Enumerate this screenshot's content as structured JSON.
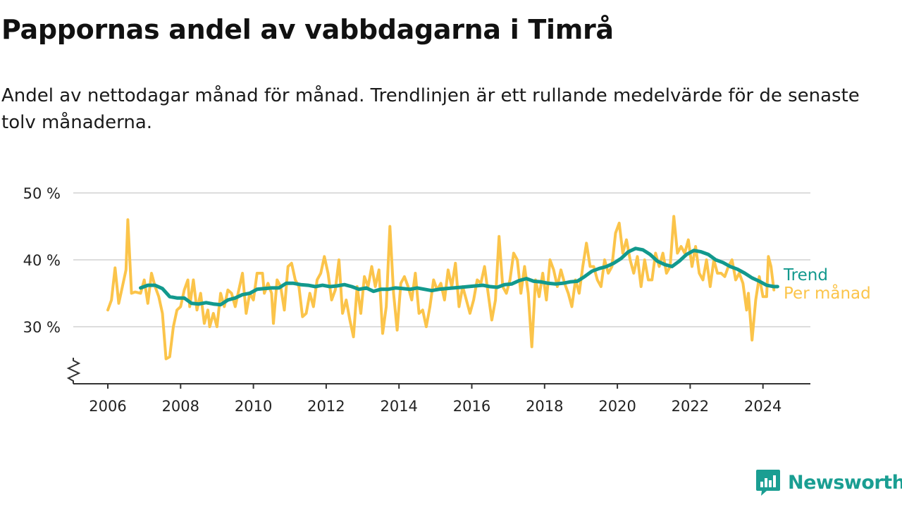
{
  "title": "Pappornas andel av vabbdagarna i Timrå",
  "subtitle": "Andel av nettodagar månad för månad. Trendlinjen är ett rullande medelvärde för de senaste tolv månaderna.",
  "brand": {
    "name": "Newsworthy",
    "color": "#1a9e92",
    "icon": "newsworthy-logo-icon"
  },
  "colors": {
    "monthly": "#fbc44a",
    "trend": "#12998d",
    "grid": "#dddddd",
    "axis": "#333333"
  },
  "chart_data": {
    "type": "line",
    "xlabel": "",
    "ylabel": "",
    "x_unit": "year",
    "xlim": [
      2005.0,
      2025.2
    ],
    "ylim": [
      22,
      50
    ],
    "y_axis_break": true,
    "grid": true,
    "y_ticks": [
      {
        "value": 30,
        "label": "30 %"
      },
      {
        "value": 40,
        "label": "40 %"
      },
      {
        "value": 50,
        "label": "50 %"
      }
    ],
    "x_ticks": [
      {
        "value": 2006,
        "label": "2006"
      },
      {
        "value": 2008,
        "label": "2008"
      },
      {
        "value": 2010,
        "label": "2010"
      },
      {
        "value": 2012,
        "label": "2012"
      },
      {
        "value": 2014,
        "label": "2014"
      },
      {
        "value": 2016,
        "label": "2016"
      },
      {
        "value": 2018,
        "label": "2018"
      },
      {
        "value": 2020,
        "label": "2020"
      },
      {
        "value": 2022,
        "label": "2022"
      },
      {
        "value": 2024,
        "label": "2024"
      }
    ],
    "series": [
      {
        "name": "Per månad",
        "color": "#fbc44a",
        "points": [
          [
            2006.0,
            32.5
          ],
          [
            2006.1,
            34
          ],
          [
            2006.2,
            38.8
          ],
          [
            2006.3,
            33.5
          ],
          [
            2006.4,
            36
          ],
          [
            2006.5,
            38.5
          ],
          [
            2006.55,
            46
          ],
          [
            2006.65,
            35
          ],
          [
            2006.75,
            35.2
          ],
          [
            2006.9,
            35
          ],
          [
            2007.0,
            37
          ],
          [
            2007.1,
            33.5
          ],
          [
            2007.2,
            38
          ],
          [
            2007.3,
            36
          ],
          [
            2007.4,
            34.5
          ],
          [
            2007.5,
            32
          ],
          [
            2007.6,
            25.2
          ],
          [
            2007.7,
            25.5
          ],
          [
            2007.8,
            30
          ],
          [
            2007.9,
            32.5
          ],
          [
            2008.0,
            33
          ],
          [
            2008.1,
            35.5
          ],
          [
            2008.2,
            37
          ],
          [
            2008.25,
            33
          ],
          [
            2008.35,
            37
          ],
          [
            2008.45,
            32.5
          ],
          [
            2008.55,
            35
          ],
          [
            2008.65,
            30.5
          ],
          [
            2008.75,
            32.5
          ],
          [
            2008.8,
            30
          ],
          [
            2008.9,
            32
          ],
          [
            2009.0,
            30
          ],
          [
            2009.1,
            35
          ],
          [
            2009.2,
            33
          ],
          [
            2009.3,
            35.5
          ],
          [
            2009.4,
            35
          ],
          [
            2009.5,
            33
          ],
          [
            2009.6,
            35.5
          ],
          [
            2009.7,
            38
          ],
          [
            2009.8,
            32
          ],
          [
            2009.9,
            35
          ],
          [
            2010.0,
            34
          ],
          [
            2010.1,
            38
          ],
          [
            2010.25,
            38
          ],
          [
            2010.3,
            35
          ],
          [
            2010.4,
            36.5
          ],
          [
            2010.5,
            35
          ],
          [
            2010.55,
            30.5
          ],
          [
            2010.65,
            37
          ],
          [
            2010.75,
            36
          ],
          [
            2010.85,
            32.5
          ],
          [
            2010.95,
            39
          ],
          [
            2011.05,
            39.5
          ],
          [
            2011.15,
            37
          ],
          [
            2011.25,
            36
          ],
          [
            2011.35,
            31.5
          ],
          [
            2011.45,
            32
          ],
          [
            2011.55,
            35
          ],
          [
            2011.65,
            33
          ],
          [
            2011.75,
            37
          ],
          [
            2011.85,
            38
          ],
          [
            2011.95,
            40.5
          ],
          [
            2012.05,
            38
          ],
          [
            2012.15,
            34
          ],
          [
            2012.25,
            35.5
          ],
          [
            2012.35,
            40
          ],
          [
            2012.45,
            32
          ],
          [
            2012.55,
            34
          ],
          [
            2012.65,
            31
          ],
          [
            2012.75,
            28.5
          ],
          [
            2012.85,
            36
          ],
          [
            2012.95,
            32
          ],
          [
            2013.05,
            37.5
          ],
          [
            2013.15,
            36
          ],
          [
            2013.25,
            39
          ],
          [
            2013.35,
            36
          ],
          [
            2013.45,
            38.5
          ],
          [
            2013.55,
            29
          ],
          [
            2013.65,
            33
          ],
          [
            2013.75,
            45
          ],
          [
            2013.85,
            35
          ],
          [
            2013.95,
            29.5
          ],
          [
            2014.05,
            36.5
          ],
          [
            2014.15,
            37.5
          ],
          [
            2014.25,
            36
          ],
          [
            2014.35,
            34
          ],
          [
            2014.45,
            38
          ],
          [
            2014.55,
            32
          ],
          [
            2014.65,
            32.5
          ],
          [
            2014.75,
            30
          ],
          [
            2014.85,
            33
          ],
          [
            2014.95,
            37
          ],
          [
            2015.05,
            35.5
          ],
          [
            2015.15,
            36.5
          ],
          [
            2015.25,
            34
          ],
          [
            2015.35,
            38.5
          ],
          [
            2015.45,
            36
          ],
          [
            2015.55,
            39.5
          ],
          [
            2015.65,
            33
          ],
          [
            2015.75,
            36
          ],
          [
            2015.85,
            34
          ],
          [
            2015.95,
            32
          ],
          [
            2016.05,
            34
          ],
          [
            2016.15,
            37
          ],
          [
            2016.25,
            36.5
          ],
          [
            2016.35,
            39
          ],
          [
            2016.45,
            35
          ],
          [
            2016.55,
            31
          ],
          [
            2016.65,
            34
          ],
          [
            2016.75,
            43.5
          ],
          [
            2016.85,
            36
          ],
          [
            2016.95,
            35
          ],
          [
            2017.05,
            37
          ],
          [
            2017.15,
            41
          ],
          [
            2017.25,
            40
          ],
          [
            2017.35,
            35
          ],
          [
            2017.45,
            39
          ],
          [
            2017.55,
            35
          ],
          [
            2017.65,
            27
          ],
          [
            2017.75,
            37
          ],
          [
            2017.85,
            34.5
          ],
          [
            2017.95,
            38
          ],
          [
            2018.05,
            34
          ],
          [
            2018.15,
            40
          ],
          [
            2018.25,
            38.5
          ],
          [
            2018.35,
            36
          ],
          [
            2018.45,
            38.5
          ],
          [
            2018.55,
            36.5
          ],
          [
            2018.65,
            35
          ],
          [
            2018.75,
            33
          ],
          [
            2018.85,
            37
          ],
          [
            2018.95,
            35
          ],
          [
            2019.05,
            39
          ],
          [
            2019.15,
            42.5
          ],
          [
            2019.25,
            39
          ],
          [
            2019.35,
            39
          ],
          [
            2019.45,
            37
          ],
          [
            2019.55,
            36
          ],
          [
            2019.65,
            40
          ],
          [
            2019.75,
            38
          ],
          [
            2019.85,
            39
          ],
          [
            2019.95,
            44
          ],
          [
            2020.05,
            45.5
          ],
          [
            2020.15,
            41
          ],
          [
            2020.25,
            43
          ],
          [
            2020.35,
            40
          ],
          [
            2020.45,
            38
          ],
          [
            2020.55,
            40.5
          ],
          [
            2020.65,
            36
          ],
          [
            2020.75,
            40
          ],
          [
            2020.85,
            37
          ],
          [
            2020.95,
            37
          ],
          [
            2021.05,
            41
          ],
          [
            2021.15,
            39
          ],
          [
            2021.25,
            41
          ],
          [
            2021.35,
            38
          ],
          [
            2021.45,
            39
          ],
          [
            2021.55,
            46.5
          ],
          [
            2021.65,
            41
          ],
          [
            2021.75,
            42
          ],
          [
            2021.85,
            41
          ],
          [
            2021.95,
            43
          ],
          [
            2022.05,
            39
          ],
          [
            2022.15,
            42
          ],
          [
            2022.25,
            38
          ],
          [
            2022.35,
            37
          ],
          [
            2022.45,
            40
          ],
          [
            2022.55,
            36
          ],
          [
            2022.65,
            40
          ],
          [
            2022.75,
            38
          ],
          [
            2022.85,
            38
          ],
          [
            2022.95,
            37.5
          ],
          [
            2023.05,
            39
          ],
          [
            2023.15,
            40
          ],
          [
            2023.25,
            37
          ],
          [
            2023.35,
            38
          ],
          [
            2023.45,
            36.5
          ],
          [
            2023.55,
            32.5
          ],
          [
            2023.6,
            35
          ],
          [
            2023.7,
            28
          ],
          [
            2023.8,
            34
          ],
          [
            2023.9,
            37.5
          ],
          [
            2024.0,
            34.5
          ],
          [
            2024.1,
            34.5
          ],
          [
            2024.15,
            40.5
          ],
          [
            2024.22,
            39
          ],
          [
            2024.3,
            35.5
          ]
        ]
      },
      {
        "name": "Trend",
        "color": "#12998d",
        "points": [
          [
            2006.9,
            35.8
          ],
          [
            2007.1,
            36.2
          ],
          [
            2007.3,
            36.2
          ],
          [
            2007.5,
            35.7
          ],
          [
            2007.7,
            34.5
          ],
          [
            2007.9,
            34.3
          ],
          [
            2008.1,
            34.3
          ],
          [
            2008.3,
            33.5
          ],
          [
            2008.5,
            33.4
          ],
          [
            2008.7,
            33.6
          ],
          [
            2008.9,
            33.4
          ],
          [
            2009.1,
            33.3
          ],
          [
            2009.3,
            34
          ],
          [
            2009.5,
            34.3
          ],
          [
            2009.7,
            34.8
          ],
          [
            2009.9,
            35
          ],
          [
            2010.1,
            35.6
          ],
          [
            2010.3,
            35.7
          ],
          [
            2010.5,
            35.8
          ],
          [
            2010.7,
            35.8
          ],
          [
            2010.9,
            36.5
          ],
          [
            2011.1,
            36.5
          ],
          [
            2011.3,
            36.3
          ],
          [
            2011.5,
            36.2
          ],
          [
            2011.7,
            36
          ],
          [
            2011.9,
            36.2
          ],
          [
            2012.1,
            36
          ],
          [
            2012.3,
            36.1
          ],
          [
            2012.5,
            36.3
          ],
          [
            2012.7,
            36
          ],
          [
            2012.9,
            35.6
          ],
          [
            2013.1,
            35.8
          ],
          [
            2013.3,
            35.3
          ],
          [
            2013.5,
            35.6
          ],
          [
            2013.7,
            35.6
          ],
          [
            2013.9,
            35.8
          ],
          [
            2014.1,
            35.7
          ],
          [
            2014.3,
            35.6
          ],
          [
            2014.5,
            35.8
          ],
          [
            2014.7,
            35.6
          ],
          [
            2014.9,
            35.4
          ],
          [
            2015.1,
            35.6
          ],
          [
            2015.3,
            35.7
          ],
          [
            2015.5,
            35.8
          ],
          [
            2015.7,
            35.9
          ],
          [
            2015.9,
            36
          ],
          [
            2016.1,
            36.1
          ],
          [
            2016.3,
            36.2
          ],
          [
            2016.5,
            36
          ],
          [
            2016.7,
            35.9
          ],
          [
            2016.9,
            36.3
          ],
          [
            2017.1,
            36.4
          ],
          [
            2017.3,
            36.9
          ],
          [
            2017.5,
            37.2
          ],
          [
            2017.7,
            36.8
          ],
          [
            2017.9,
            36.7
          ],
          [
            2018.1,
            36.5
          ],
          [
            2018.3,
            36.4
          ],
          [
            2018.5,
            36.5
          ],
          [
            2018.7,
            36.7
          ],
          [
            2018.9,
            36.8
          ],
          [
            2019.1,
            37.5
          ],
          [
            2019.3,
            38.3
          ],
          [
            2019.5,
            38.7
          ],
          [
            2019.7,
            39
          ],
          [
            2019.9,
            39.5
          ],
          [
            2020.1,
            40.2
          ],
          [
            2020.3,
            41.2
          ],
          [
            2020.5,
            41.7
          ],
          [
            2020.7,
            41.5
          ],
          [
            2020.9,
            40.8
          ],
          [
            2021.1,
            39.8
          ],
          [
            2021.3,
            39.3
          ],
          [
            2021.5,
            39
          ],
          [
            2021.7,
            39.8
          ],
          [
            2021.9,
            40.8
          ],
          [
            2022.1,
            41.4
          ],
          [
            2022.3,
            41.2
          ],
          [
            2022.5,
            40.8
          ],
          [
            2022.7,
            40
          ],
          [
            2022.9,
            39.6
          ],
          [
            2023.1,
            39
          ],
          [
            2023.3,
            38.6
          ],
          [
            2023.5,
            38
          ],
          [
            2023.7,
            37.3
          ],
          [
            2023.9,
            36.8
          ],
          [
            2024.1,
            36.2
          ],
          [
            2024.3,
            36
          ],
          [
            2024.4,
            36
          ]
        ]
      }
    ],
    "legend": [
      {
        "label": "Trend",
        "color": "#12998d"
      },
      {
        "label": "Per månad",
        "color": "#fbc44a"
      }
    ],
    "legend_placement": "right, at line ends"
  }
}
